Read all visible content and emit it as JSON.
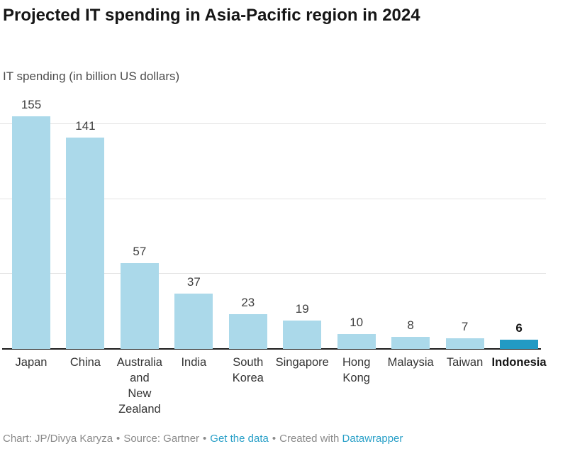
{
  "header": {
    "title": "Projected IT spending in Asia-Pacific region in 2024",
    "subtitle": "IT spending (in billion US dollars)"
  },
  "chart_data": {
    "type": "bar",
    "title": "Projected IT spending in Asia-Pacific region in 2024",
    "unit_label": "IT spending (in billion US dollars)",
    "categories": [
      "Japan",
      "China",
      "Australia and New Zealand",
      "India",
      "South Korea",
      "Singapore",
      "Hong Kong",
      "Malaysia",
      "Taiwan",
      "Indonesia"
    ],
    "category_display": [
      "Japan",
      "China",
      "Australia\nand\nNew\nZealand",
      "India",
      "South\nKorea",
      "Singapore",
      "Hong\nKong",
      "Malaysia",
      "Taiwan",
      "Indonesia"
    ],
    "values": [
      155,
      141,
      57,
      37,
      23,
      19,
      10,
      8,
      7,
      6
    ],
    "value_labels": [
      "155",
      "141",
      "57",
      "37",
      "23",
      "19",
      "10",
      "8",
      "7",
      "6"
    ],
    "highlight_index": 9,
    "ylim": [
      0,
      160
    ],
    "gridline_values": [
      50,
      100,
      150
    ],
    "grid": "horizontal-unlabeled",
    "legend": "none",
    "xlabel": "",
    "ylabel": "IT spending (in billion US dollars)",
    "colors": {
      "bar": "#abd9ea",
      "highlight_bar": "#229ac4",
      "grid_line": "#e3e3e3",
      "axis_line": "#1a1a1a"
    }
  },
  "footer": {
    "byline": "Chart: JP/Divya Karyza",
    "separator": "•",
    "source": "Source: Gartner",
    "get_data_link": "Get the data",
    "created_with": "Created with",
    "tool_link": "Datawrapper",
    "link_color": "#2aa0c8"
  }
}
